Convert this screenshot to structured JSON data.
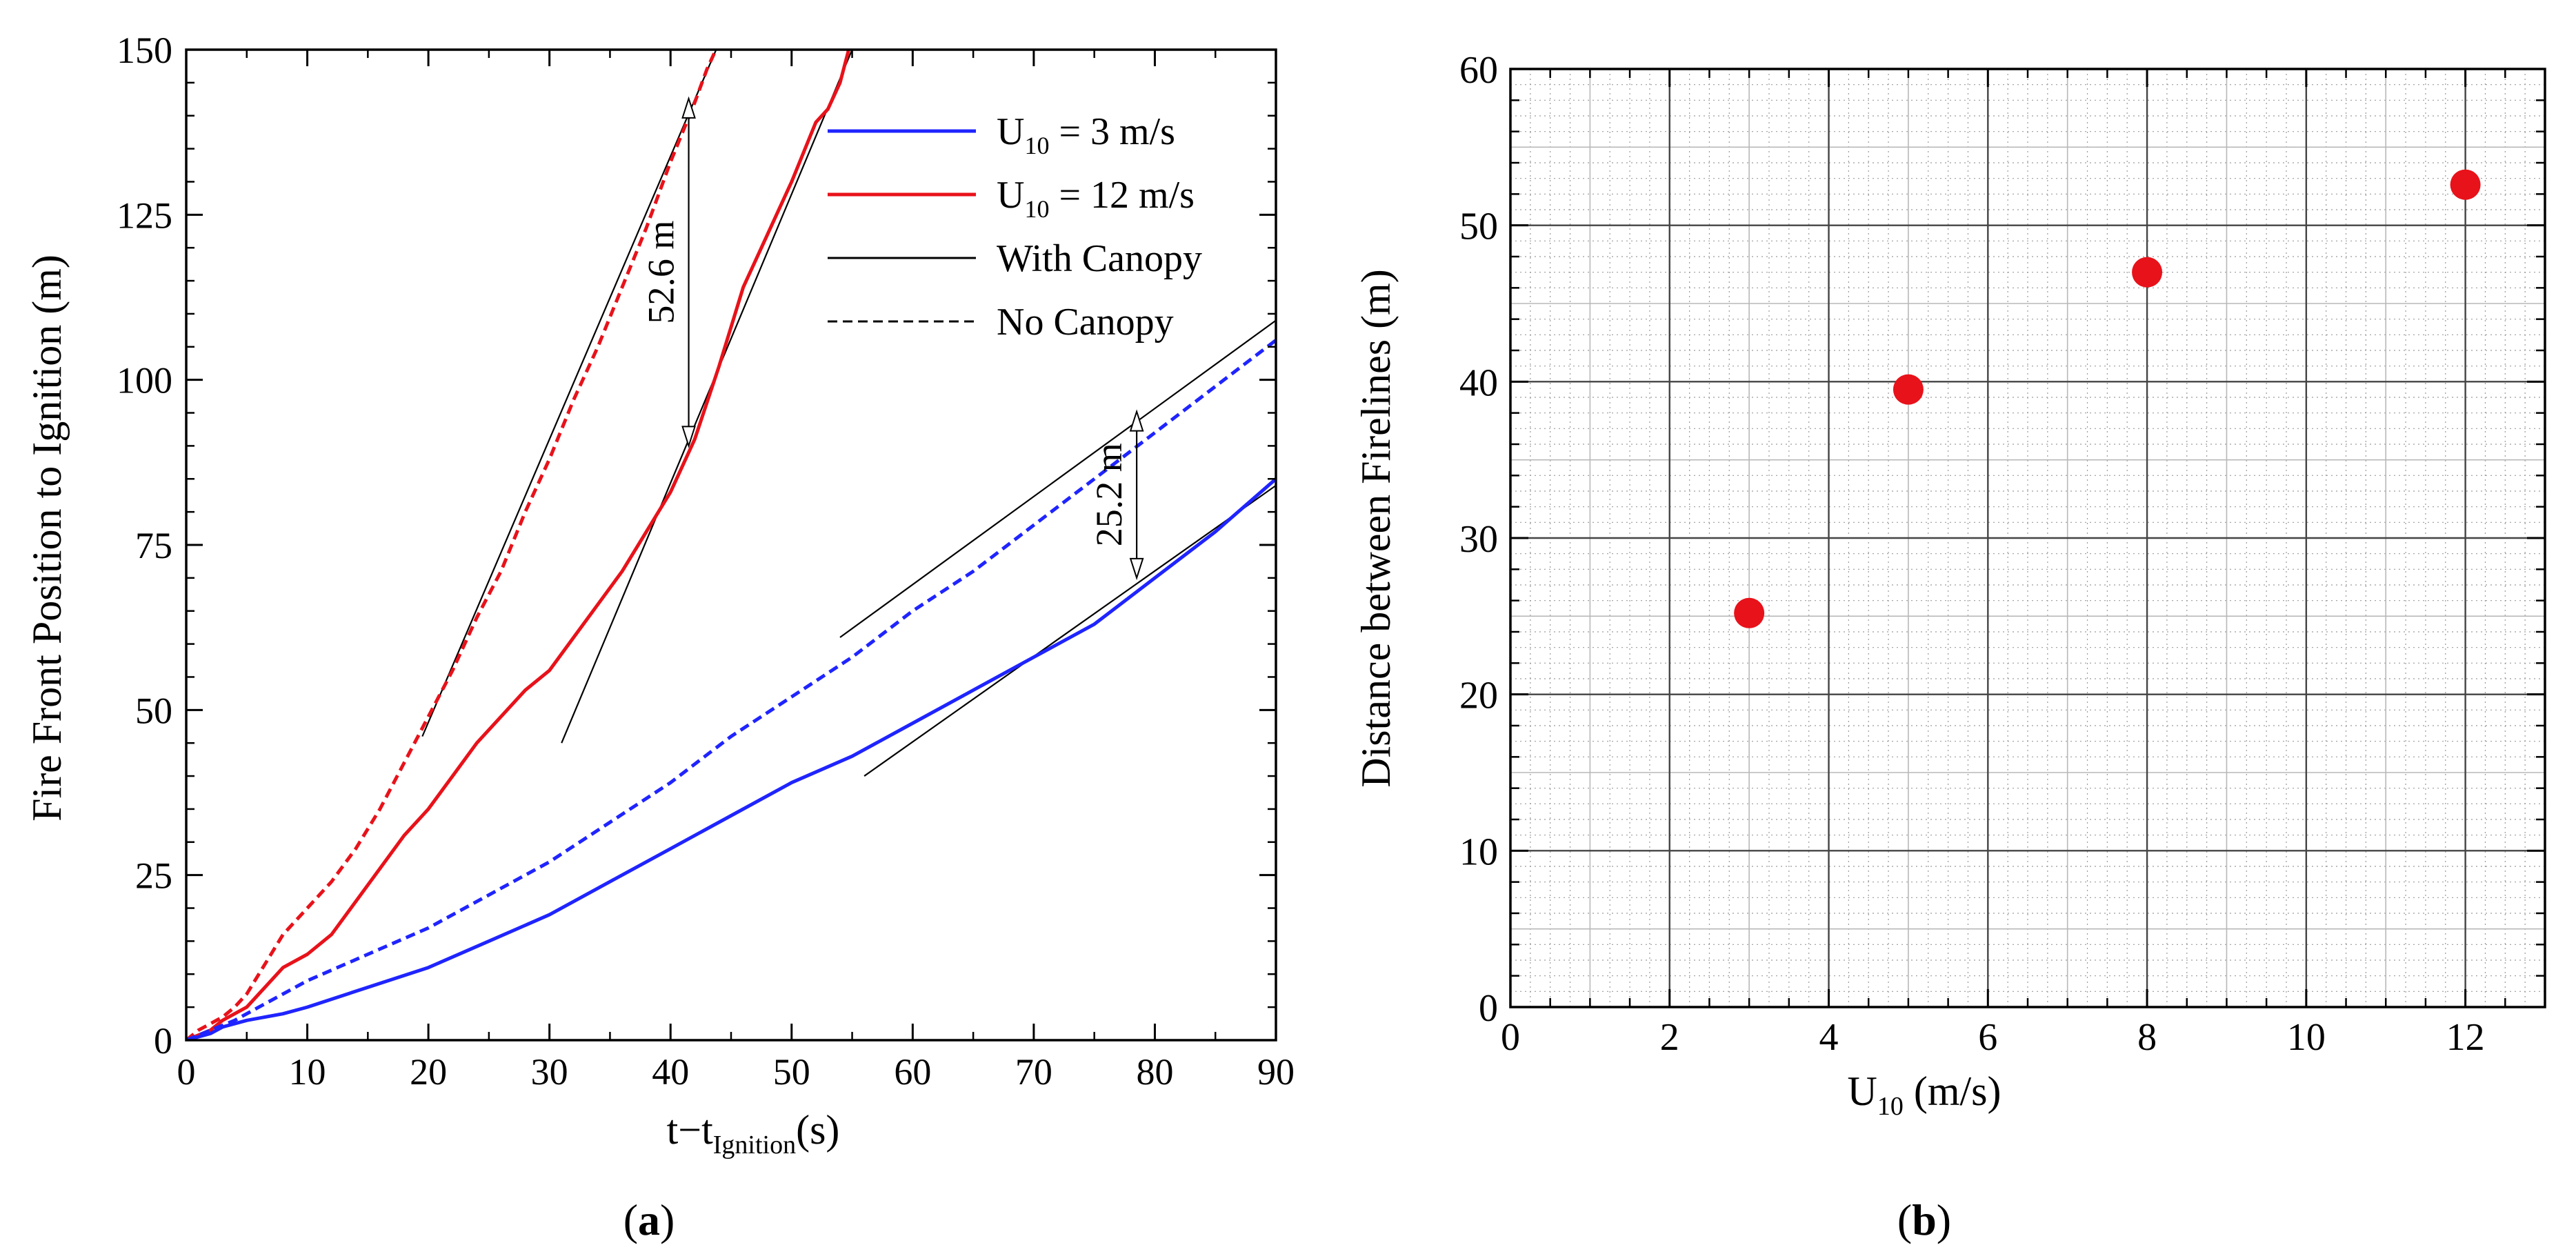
{
  "colors": {
    "blue": "#1f24ff",
    "red": "#e8121a",
    "black": "#000000",
    "grid_major": "#444444",
    "grid_minor": "#9a9a9a"
  },
  "chart_data": [
    {
      "id": "a",
      "type": "line",
      "panel_label": "a",
      "xlabel_main": "t−t",
      "xlabel_sub": "Ignition",
      "xlabel_unit": "(s)",
      "ylabel": "Fire Front Position to Ignition (m)",
      "xlim": [
        0,
        90
      ],
      "ylim": [
        0,
        150
      ],
      "xticks": [
        "0",
        "10",
        "20",
        "30",
        "40",
        "50",
        "60",
        "70",
        "80",
        "90"
      ],
      "yticks": [
        "0",
        "25",
        "50",
        "75",
        "100",
        "125",
        "150"
      ],
      "legend": [
        {
          "main": "U",
          "sub": "10",
          "rest": " = 3  m/s",
          "color": "#1f24ff",
          "style": "solid"
        },
        {
          "main": "U",
          "sub": "10",
          "rest": " = 12  m/s",
          "color": "#e8121a",
          "style": "solid"
        },
        {
          "main": "With Canopy",
          "sub": "",
          "rest": "",
          "color": "#000000",
          "style": "solid"
        },
        {
          "main": "No Canopy",
          "sub": "",
          "rest": "",
          "color": "#000000",
          "style": "dashed"
        }
      ],
      "series": [
        {
          "name": "U10 = 12 m/s, No Canopy",
          "color": "#e8121a",
          "dash": true,
          "x": [
            0,
            1,
            2,
            3,
            4,
            5,
            6,
            7,
            8,
            10,
            12,
            14,
            16,
            18,
            20,
            22,
            24,
            26,
            28,
            30,
            32,
            34,
            36,
            38,
            40,
            42,
            43,
            44
          ],
          "y": [
            0,
            1.5,
            2.5,
            3.5,
            5,
            7,
            10,
            13,
            16,
            20,
            24,
            29,
            35,
            42,
            49,
            56,
            64,
            71,
            80,
            88,
            97,
            105,
            114,
            123,
            133,
            142,
            147,
            151
          ]
        },
        {
          "name": "U10 = 12 m/s, With Canopy",
          "color": "#e8121a",
          "dash": false,
          "x": [
            0,
            2,
            3,
            4,
            5,
            6,
            7,
            8,
            10,
            12,
            14,
            16,
            18,
            20,
            22,
            24,
            26,
            28,
            30,
            32,
            34,
            36,
            38,
            40,
            42,
            44,
            46,
            48,
            50,
            52,
            53,
            54,
            55
          ],
          "y": [
            0,
            1.5,
            3,
            4,
            5,
            7,
            9,
            11,
            13,
            16,
            21,
            26,
            31,
            35,
            40,
            45,
            49,
            53,
            56,
            61,
            66,
            71,
            77,
            83,
            91,
            102,
            114,
            122,
            130,
            139,
            141,
            145,
            152
          ]
        },
        {
          "name": "U10 = 3 m/s, No Canopy",
          "color": "#1f24ff",
          "dash": true,
          "x": [
            0,
            2,
            4,
            6,
            8,
            10,
            15,
            20,
            25,
            30,
            35,
            40,
            45,
            50,
            55,
            60,
            65,
            70,
            75,
            80,
            85,
            90
          ],
          "y": [
            0,
            1.5,
            3,
            5,
            7,
            9,
            13,
            17,
            22,
            27,
            33,
            39,
            46,
            52,
            58,
            65,
            71,
            78,
            85,
            92,
            99,
            106
          ]
        },
        {
          "name": "U10 = 3 m/s, With Canopy",
          "color": "#1f24ff",
          "dash": false,
          "x": [
            0,
            2,
            3,
            5,
            8,
            10,
            15,
            20,
            25,
            30,
            35,
            40,
            45,
            50,
            55,
            60,
            65,
            70,
            75,
            80,
            85,
            90
          ],
          "y": [
            0,
            1,
            2,
            3,
            4,
            5,
            8,
            11,
            15,
            19,
            24,
            29,
            34,
            39,
            43,
            48,
            53,
            58,
            63,
            70,
            77,
            85
          ]
        }
      ],
      "tangents": [
        {
          "x": [
            19.5,
            44
          ],
          "y": [
            46,
            151
          ]
        },
        {
          "x": [
            31,
            55
          ],
          "y": [
            45,
            150
          ]
        },
        {
          "x": [
            56,
            90
          ],
          "y": [
            40,
            84
          ]
        },
        {
          "x": [
            54,
            90
          ],
          "y": [
            61,
            109
          ]
        }
      ],
      "annotations": [
        {
          "text": "52.6 m",
          "x": 41.5,
          "y_from": 90,
          "y_to": 142.6
        },
        {
          "text": "25.2 m",
          "x": 78.5,
          "y_from": 70,
          "y_to": 95.2
        }
      ]
    },
    {
      "id": "b",
      "type": "scatter",
      "panel_label": "b",
      "xlabel_main": "U",
      "xlabel_sub": "10",
      "xlabel_unit": " (m/s)",
      "ylabel": "Distance between Firelines (m)",
      "xlim": [
        0,
        13
      ],
      "ylim": [
        0,
        60
      ],
      "xticks": [
        "0",
        "2",
        "4",
        "6",
        "8",
        "10",
        "12"
      ],
      "yticks": [
        "0",
        "10",
        "20",
        "30",
        "40",
        "50",
        "60"
      ],
      "points": {
        "x": [
          3,
          5,
          8,
          12
        ],
        "y": [
          25.2,
          39.5,
          47,
          52.6
        ],
        "color": "#e8121a"
      }
    }
  ]
}
